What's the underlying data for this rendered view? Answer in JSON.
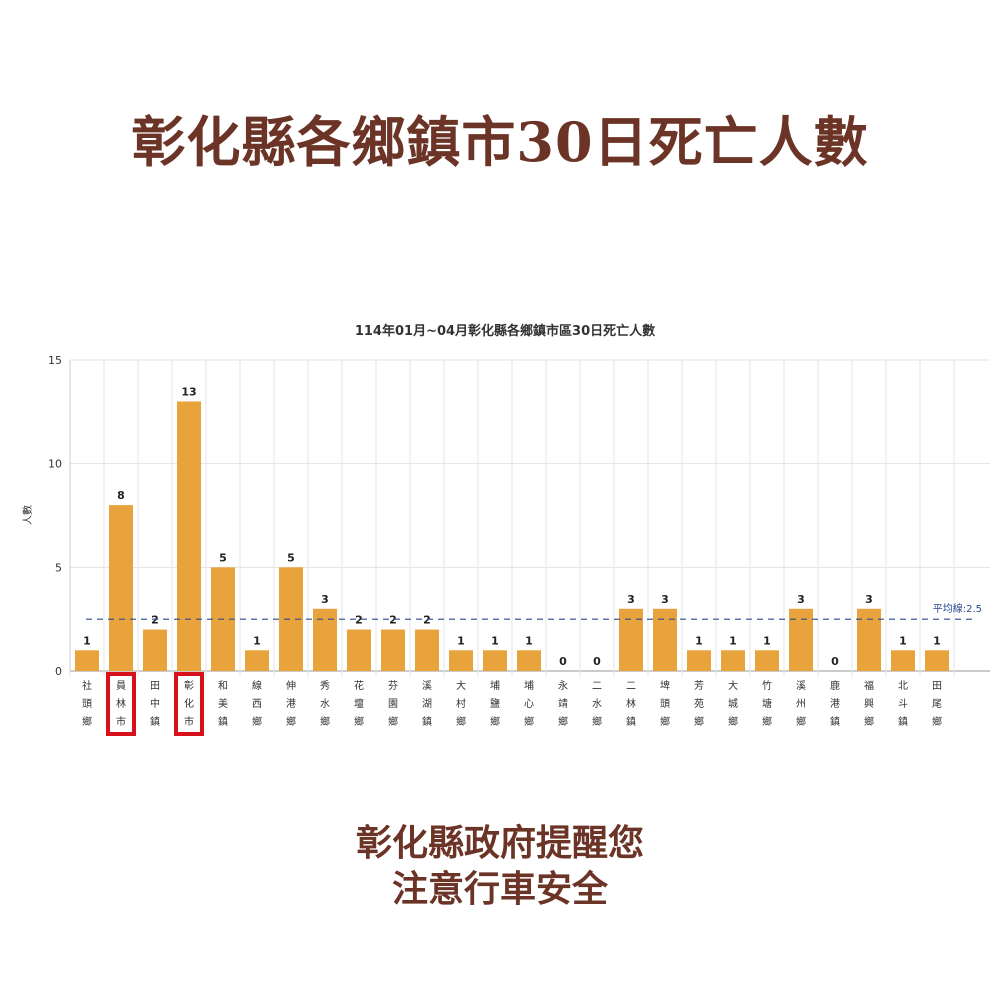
{
  "title": "彰化縣各鄉鎮市30日死亡人數",
  "footer": {
    "line1": "彰化縣政府提醒您",
    "line2": "注意行車安全"
  },
  "colors": {
    "title": "#6b3426",
    "bar": "#e8a33d",
    "highlight": "#d8101c",
    "average_line": "#2b4b8f"
  },
  "chart_data": {
    "type": "bar",
    "title": "114年01月~04月彰化縣各鄉鎮市區30日死亡人數",
    "ylabel": "人數",
    "xlabel": "",
    "ylim": [
      0,
      15
    ],
    "yticks": [
      0,
      5,
      10,
      15
    ],
    "grid": true,
    "categories": [
      "社頭鄉",
      "員林市",
      "田中鎮",
      "彰化市",
      "和美鎮",
      "線西鄉",
      "伸港鄉",
      "秀水鄉",
      "花壇鄉",
      "芬園鄉",
      "溪湖鎮",
      "大村鄉",
      "埔鹽鄉",
      "埔心鄉",
      "永靖鄉",
      "二水鄉",
      "二林鎮",
      "埤頭鄉",
      "芳苑鄉",
      "大城鄉",
      "竹塘鄉",
      "溪州鄉",
      "鹿港鎮",
      "福興鄉",
      "北斗鎮",
      "田尾鄉"
    ],
    "values": [
      1,
      8,
      2,
      13,
      5,
      1,
      5,
      3,
      2,
      2,
      2,
      1,
      1,
      1,
      0,
      0,
      3,
      3,
      1,
      1,
      1,
      3,
      0,
      3,
      1,
      1
    ],
    "highlighted": [
      "員林市",
      "彰化市"
    ],
    "average": {
      "label": "平均線:2.5",
      "value": 2.5
    }
  }
}
